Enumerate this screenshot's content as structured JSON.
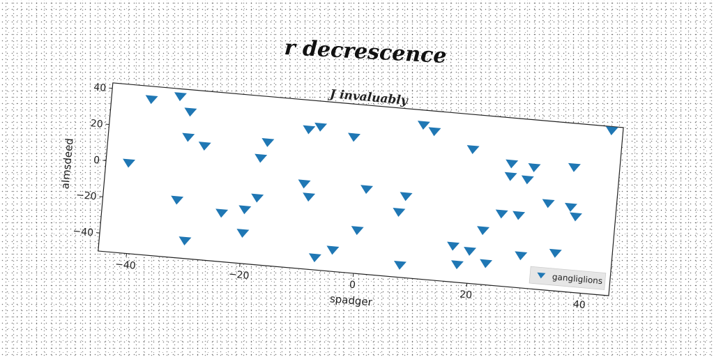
{
  "chart_data": {
    "type": "scatter",
    "title": "r decrescence",
    "subtitle": "J invaluably",
    "xlabel": "spadger",
    "ylabel": "almsdeed",
    "xlim": [
      -45,
      45
    ],
    "ylim": [
      -50,
      43
    ],
    "xticks": [
      -40,
      -20,
      0,
      20,
      40
    ],
    "yticks": [
      -40,
      -20,
      0,
      20,
      40
    ],
    "xtick_labels": [
      "−40",
      "−20",
      "0",
      "20",
      "40"
    ],
    "ytick_labels": [
      "−40",
      "−20",
      "0",
      "20",
      "40"
    ],
    "grid": false,
    "legend_position": "bottom-right",
    "marker": "triangle-down",
    "color": "#1f77b4",
    "series": [
      {
        "name": "gangliglions",
        "points": [
          [
            -41,
            0
          ],
          [
            -38,
            36
          ],
          [
            -33,
            39
          ],
          [
            -31,
            31
          ],
          [
            -31,
            17
          ],
          [
            -28,
            13
          ],
          [
            -32,
            -18
          ],
          [
            -30,
            -40
          ],
          [
            -24,
            -23
          ],
          [
            -20,
            -20
          ],
          [
            -20,
            -33
          ],
          [
            -18,
            9
          ],
          [
            -17,
            18
          ],
          [
            -18,
            -13
          ],
          [
            -10,
            27
          ],
          [
            -8,
            29
          ],
          [
            -10,
            -3
          ],
          [
            -9,
            -10
          ],
          [
            -7,
            -43
          ],
          [
            -4,
            -38
          ],
          [
            -2,
            25
          ],
          [
            0,
            -26
          ],
          [
            1,
            -3
          ],
          [
            7,
            -14
          ],
          [
            8,
            -5
          ],
          [
            8,
            -43
          ],
          [
            10,
            35
          ],
          [
            12,
            32
          ],
          [
            17,
            -30
          ],
          [
            18,
            -40
          ],
          [
            19,
            24
          ],
          [
            20,
            -32
          ],
          [
            22,
            -20
          ],
          [
            23,
            -38
          ],
          [
            25,
            -10
          ],
          [
            26,
            18
          ],
          [
            26,
            11
          ],
          [
            28,
            -10
          ],
          [
            29,
            10
          ],
          [
            30,
            17
          ],
          [
            29,
            -32
          ],
          [
            33,
            -2
          ],
          [
            35,
            -29
          ],
          [
            37,
            19
          ],
          [
            37,
            -3
          ],
          [
            38,
            -8
          ],
          [
            43,
            41
          ]
        ]
      }
    ]
  }
}
